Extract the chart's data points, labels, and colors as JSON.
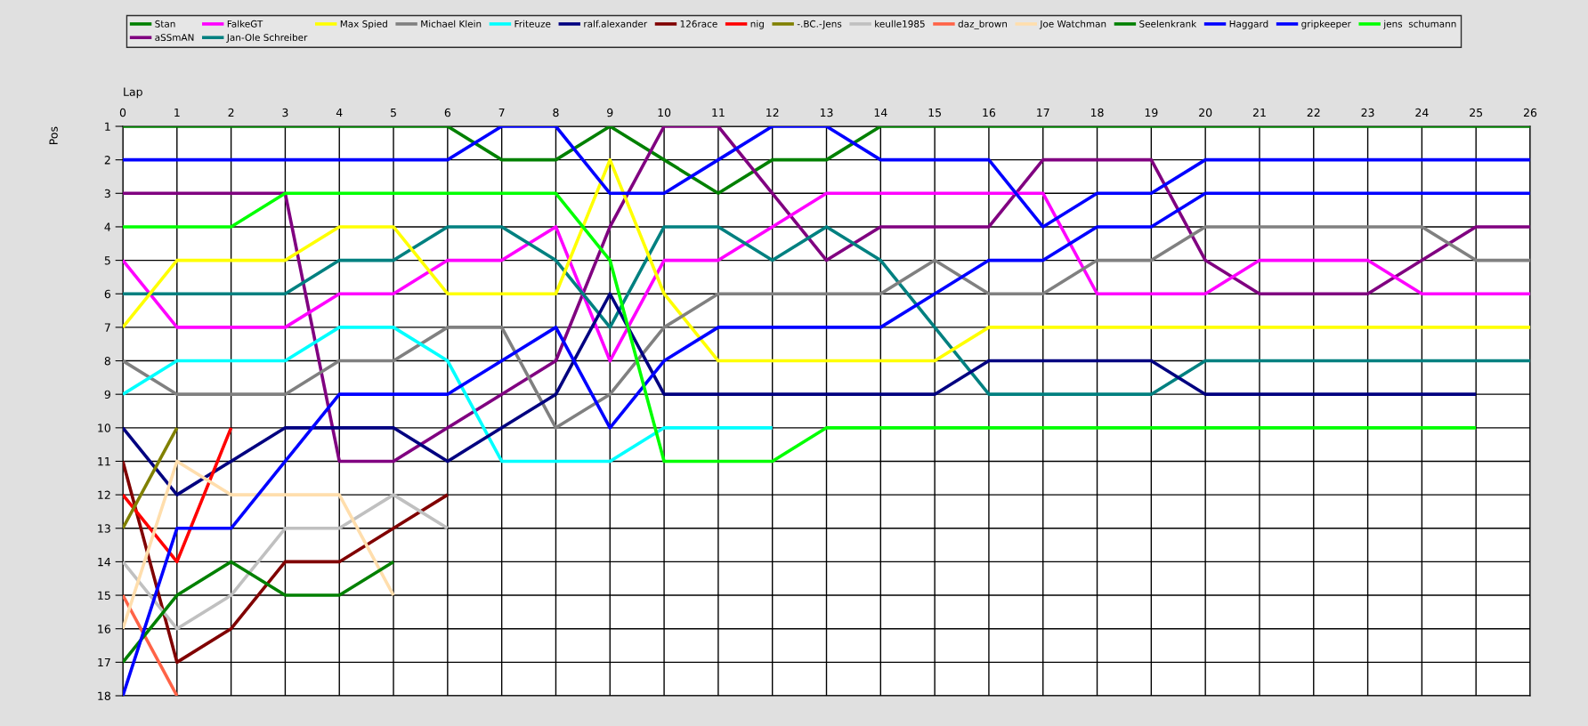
{
  "chart_data": {
    "type": "line",
    "xlabel": "Lap",
    "ylabel": "Pos",
    "x": [
      0,
      1,
      2,
      3,
      4,
      5,
      6,
      7,
      8,
      9,
      10,
      11,
      12,
      13,
      14,
      15,
      16,
      17,
      18,
      19,
      20,
      21,
      22,
      23,
      24,
      25,
      26
    ],
    "xlim": [
      0,
      26
    ],
    "xticks": [
      0,
      1,
      2,
      3,
      4,
      5,
      6,
      7,
      8,
      9,
      10,
      11,
      12,
      13,
      14,
      15,
      16,
      17,
      18,
      19,
      20,
      21,
      22,
      23,
      24,
      25,
      26
    ],
    "ylim": [
      18,
      1
    ],
    "yticks": [
      1,
      2,
      3,
      4,
      5,
      6,
      7,
      8,
      9,
      10,
      11,
      12,
      13,
      14,
      15,
      16,
      17,
      18
    ],
    "grid": true,
    "legend": "top",
    "marker": "none",
    "line_style": "solid",
    "series": [
      {
        "name": "Stan",
        "color": "#008000",
        "values": [
          1,
          1,
          1,
          1,
          1,
          1,
          1,
          2,
          2,
          1,
          2,
          3,
          2,
          2,
          1,
          1,
          1,
          1,
          1,
          1,
          1,
          1,
          1,
          1,
          1,
          1,
          1
        ]
      },
      {
        "name": "aSSmAN",
        "color": "#800080",
        "values": [
          3,
          3,
          3,
          3,
          11,
          11,
          10,
          9,
          8,
          4,
          1,
          1,
          3,
          5,
          4,
          4,
          4,
          2,
          2,
          2,
          5,
          6,
          6,
          6,
          5,
          4,
          4
        ]
      },
      {
        "name": "FalkeGT",
        "color": "#ff00ff",
        "values": [
          5,
          7,
          7,
          7,
          6,
          6,
          5,
          5,
          4,
          8,
          5,
          5,
          4,
          3,
          3,
          3,
          3,
          3,
          6,
          6,
          6,
          5,
          5,
          5,
          6,
          6,
          6
        ]
      },
      {
        "name": "Jan-Ole Schreiber",
        "color": "#008080",
        "values": [
          6,
          6,
          6,
          6,
          5,
          5,
          4,
          4,
          5,
          7,
          4,
          4,
          5,
          4,
          5,
          7,
          9,
          9,
          9,
          9,
          8,
          8,
          8,
          8,
          8,
          8,
          8
        ]
      },
      {
        "name": "Max Spied",
        "color": "#ffff00",
        "values": [
          7,
          5,
          5,
          5,
          4,
          4,
          6,
          6,
          6,
          2,
          6,
          8,
          8,
          8,
          8,
          8,
          7,
          7,
          7,
          7,
          7,
          7,
          7,
          7,
          7,
          7,
          7
        ]
      },
      {
        "name": "Michael Klein",
        "color": "#808080",
        "values": [
          8,
          9,
          9,
          9,
          8,
          8,
          7,
          7,
          10,
          9,
          7,
          6,
          6,
          6,
          6,
          5,
          6,
          6,
          5,
          5,
          4,
          4,
          4,
          4,
          4,
          5,
          5
        ]
      },
      {
        "name": "Friteuze",
        "color": "#00ffff",
        "values": [
          9,
          8,
          8,
          8,
          7,
          7,
          8,
          11,
          11,
          11,
          10,
          10,
          10,
          null,
          null,
          null,
          null,
          null,
          null,
          null,
          null,
          null,
          null,
          null,
          null,
          null,
          null
        ]
      },
      {
        "name": "ralf.alexander",
        "color": "#000080",
        "values": [
          10,
          12,
          11,
          10,
          10,
          10,
          11,
          10,
          9,
          6,
          9,
          9,
          9,
          9,
          9,
          9,
          8,
          8,
          8,
          8,
          9,
          9,
          9,
          9,
          9,
          9,
          null
        ]
      },
      {
        "name": "126race",
        "color": "#800000",
        "values": [
          11,
          17,
          16,
          14,
          14,
          13,
          12,
          null,
          null,
          null,
          null,
          null,
          null,
          null,
          null,
          null,
          null,
          null,
          null,
          null,
          null,
          null,
          null,
          null,
          null,
          null,
          null
        ]
      },
      {
        "name": "nig",
        "color": "#ff0000",
        "values": [
          12,
          14,
          10,
          null,
          null,
          null,
          null,
          null,
          null,
          null,
          null,
          null,
          null,
          null,
          null,
          null,
          null,
          null,
          null,
          null,
          null,
          null,
          null,
          null,
          null,
          null,
          null
        ]
      },
      {
        "name": "-.BC.-Jens",
        "color": "#808000",
        "values": [
          13,
          10,
          null,
          null,
          null,
          null,
          null,
          null,
          null,
          null,
          null,
          null,
          null,
          null,
          null,
          null,
          null,
          null,
          null,
          null,
          null,
          null,
          null,
          null,
          null,
          null,
          null
        ]
      },
      {
        "name": "keulle1985",
        "color": "#c0c0c0",
        "values": [
          14,
          16,
          15,
          13,
          13,
          12,
          13,
          null,
          null,
          null,
          null,
          null,
          null,
          null,
          null,
          null,
          null,
          null,
          null,
          null,
          null,
          null,
          null,
          null,
          null,
          null,
          null
        ]
      },
      {
        "name": "daz_brown",
        "color": "#ff6347",
        "values": [
          15,
          18,
          null,
          null,
          null,
          null,
          null,
          null,
          null,
          null,
          null,
          null,
          null,
          null,
          null,
          null,
          null,
          null,
          null,
          null,
          null,
          null,
          null,
          null,
          null,
          null,
          null
        ]
      },
      {
        "name": "Joe Watchman",
        "color": "#ffdead",
        "values": [
          16,
          11,
          12,
          12,
          12,
          15,
          null,
          null,
          null,
          null,
          null,
          null,
          null,
          null,
          null,
          null,
          null,
          null,
          null,
          null,
          null,
          null,
          null,
          null,
          null,
          null,
          null
        ]
      },
      {
        "name": "Seelenkrank",
        "color": "#008000",
        "values": [
          17,
          15,
          14,
          15,
          15,
          14,
          null,
          null,
          null,
          null,
          null,
          null,
          null,
          null,
          null,
          null,
          null,
          null,
          null,
          null,
          null,
          null,
          null,
          null,
          null,
          null,
          null
        ]
      },
      {
        "name": "Haggard",
        "color": "#0000ff",
        "values": [
          18,
          13,
          13,
          11,
          9,
          9,
          9,
          8,
          7,
          10,
          8,
          7,
          7,
          7,
          7,
          6,
          5,
          5,
          4,
          4,
          3,
          3,
          3,
          3,
          3,
          3,
          3
        ]
      },
      {
        "name": "gripkeeper",
        "color": "#0000ff",
        "values": [
          2,
          2,
          2,
          2,
          2,
          2,
          2,
          1,
          1,
          3,
          3,
          2,
          1,
          1,
          2,
          2,
          2,
          4,
          3,
          3,
          2,
          2,
          2,
          2,
          2,
          2,
          2
        ]
      },
      {
        "name": "jens  schumann",
        "color": "#00ff00",
        "values": [
          4,
          4,
          4,
          3,
          3,
          3,
          3,
          3,
          3,
          5,
          11,
          11,
          11,
          10,
          10,
          10,
          10,
          10,
          10,
          10,
          10,
          10,
          10,
          10,
          10,
          10,
          null
        ]
      }
    ]
  }
}
